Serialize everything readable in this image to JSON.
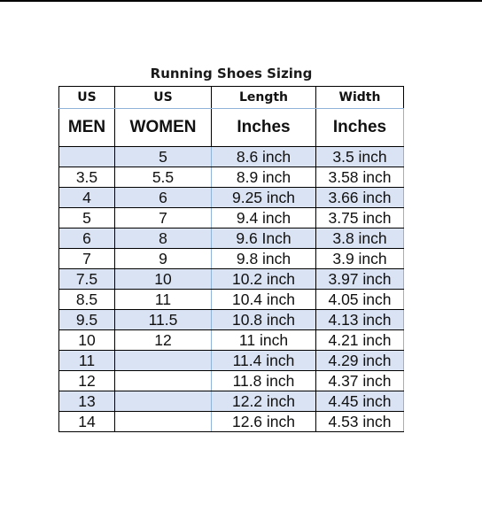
{
  "title": "Running Shoes Sizing",
  "header_row1": [
    "US",
    "US",
    "Length",
    "Width"
  ],
  "header_row2": [
    "MEN",
    "WOMEN",
    "Inches",
    "Inches"
  ],
  "rows": [
    [
      "",
      "5",
      "8.6 inch",
      "3.5 inch"
    ],
    [
      "3.5",
      "5.5",
      "8.9 inch",
      "3.58 inch"
    ],
    [
      "4",
      "6",
      "9.25 inch",
      "3.66 inch"
    ],
    [
      "5",
      "7",
      "9.4 inch",
      "3.75 inch"
    ],
    [
      "6",
      "8",
      "9.6 Inch",
      "3.8 inch"
    ],
    [
      "7",
      "9",
      "9.8 inch",
      "3.9 inch"
    ],
    [
      "7.5",
      "10",
      "10.2 inch",
      "3.97 inch"
    ],
    [
      "8.5",
      "11",
      "10.4 inch",
      "4.05 inch"
    ],
    [
      "9.5",
      "11.5",
      "10.8 inch",
      "4.13 inch"
    ],
    [
      "10",
      "12",
      "11 inch",
      "4.21 inch"
    ],
    [
      "11",
      "",
      "11.4 inch",
      "4.29 inch"
    ],
    [
      "12",
      "",
      "11.8 inch",
      "4.37 inch"
    ],
    [
      "13",
      "",
      "12.2 inch",
      "4.45 inch"
    ],
    [
      "14",
      "",
      "12.6 inch",
      "4.53 inch"
    ]
  ],
  "colors": {
    "band": "#dae3f3",
    "grid": "#000000",
    "accent_grid": "#8fb3d9"
  }
}
